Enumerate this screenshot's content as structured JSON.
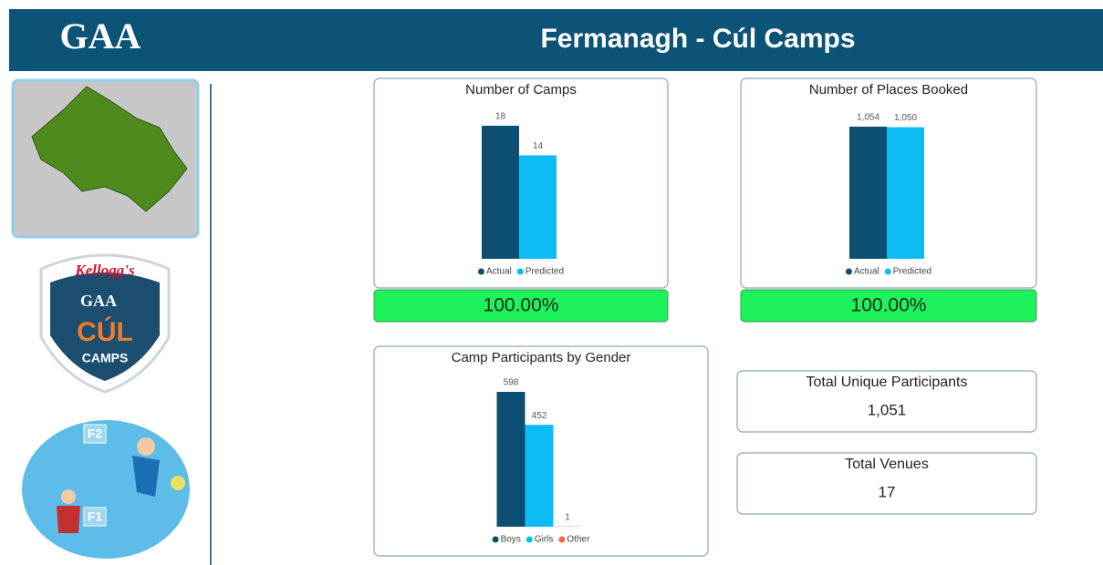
{
  "header": {
    "title": "Fermanagh - Cúl Camps",
    "logo": "GAA"
  },
  "badge": {
    "brand": "Kellogg's",
    "logo": "GAA",
    "name": "CÚL",
    "sub": "CAMPS"
  },
  "poster": {
    "top": "F2",
    "bottom": "F1"
  },
  "chart_data": [
    {
      "type": "bar",
      "title": "Number of Camps",
      "categories": [
        null
      ],
      "series": [
        {
          "name": "Actual",
          "color": "#0c4f72",
          "values": [
            18
          ]
        },
        {
          "name": "Predicted",
          "color": "#0dbcf5",
          "values": [
            14
          ]
        }
      ]
    },
    {
      "type": "bar",
      "title": "Number of Places Booked",
      "categories": [
        null
      ],
      "series": [
        {
          "name": "Actual",
          "color": "#0c4f72",
          "values": [
            1054
          ],
          "value_labels": [
            "1,054"
          ]
        },
        {
          "name": "Predicted",
          "color": "#0dbcf5",
          "values": [
            1050
          ],
          "value_labels": [
            "1,050"
          ]
        }
      ]
    },
    {
      "type": "bar",
      "title": "Camp Participants by Gender",
      "categories": [
        null
      ],
      "series": [
        {
          "name": "Boys",
          "color": "#0c4f72",
          "values": [
            598
          ]
        },
        {
          "name": "Girls",
          "color": "#0dbcf5",
          "values": [
            452
          ]
        },
        {
          "name": "Other",
          "color": "#f06b3a",
          "values": [
            1
          ]
        }
      ]
    }
  ],
  "attainment": [
    "100.00%",
    "100.00%"
  ],
  "cards": [
    {
      "label": "Total Unique Participants",
      "value": "1,051"
    },
    {
      "label": "Total Venues",
      "value": 17
    }
  ]
}
